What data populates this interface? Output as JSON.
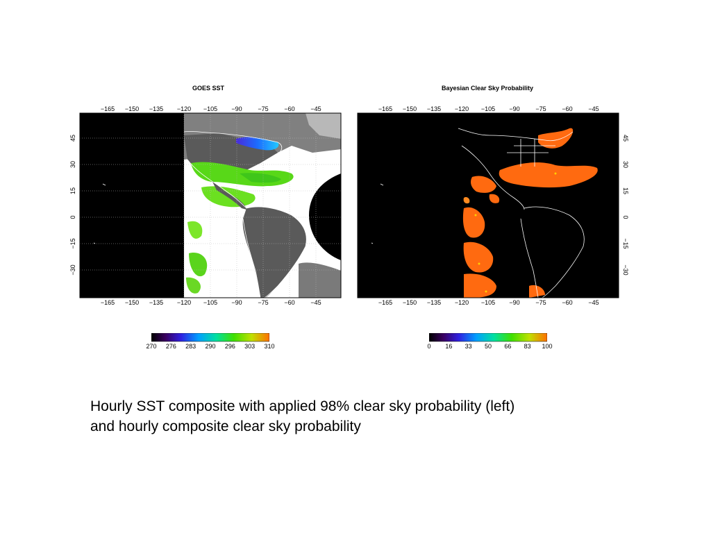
{
  "panels": [
    {
      "title": "GOES SST",
      "top_ticks": [
        "−165",
        "−150",
        "−135",
        "−120",
        "−105",
        "−90",
        "−75",
        "−60",
        "−45"
      ],
      "bottom_ticks": [
        "−165",
        "−150",
        "−135",
        "−120",
        "−105",
        "−90",
        "−75",
        "−60",
        "−45"
      ],
      "lat_ticks": [
        "45",
        "30",
        "15",
        "0",
        "−15",
        "−30"
      ],
      "lat_side": "left",
      "colorbar": {
        "labels": [
          "270",
          "276",
          "283",
          "290",
          "296",
          "303",
          "310"
        ],
        "unit": ""
      }
    },
    {
      "title": "Bayesian Clear Sky Probability",
      "top_ticks": [
        "−165",
        "−150",
        "−135",
        "−120",
        "−105",
        "−90",
        "−75",
        "−60",
        "−45"
      ],
      "bottom_ticks": [
        "−165",
        "−150",
        "−135",
        "−120",
        "−105",
        "−90",
        "−75",
        "−60",
        "−45"
      ],
      "lat_ticks": [
        "45",
        "30",
        "15",
        "0",
        "−15",
        "−30"
      ],
      "lat_side": "right",
      "colorbar": {
        "labels": [
          "0",
          "16",
          "33",
          "50",
          "66",
          "83",
          "100"
        ],
        "unit": ""
      }
    }
  ],
  "caption": {
    "line1": "Hourly SST composite with applied 98% clear sky probability (left)",
    "line2": "and hourly composite clear sky probability"
  },
  "colors": {
    "background": "#000000",
    "coast": "#ffffff",
    "sst_green": "#58d818",
    "prob_orange": "#ff6a10",
    "cloud_grey": "#6e6e6e"
  }
}
